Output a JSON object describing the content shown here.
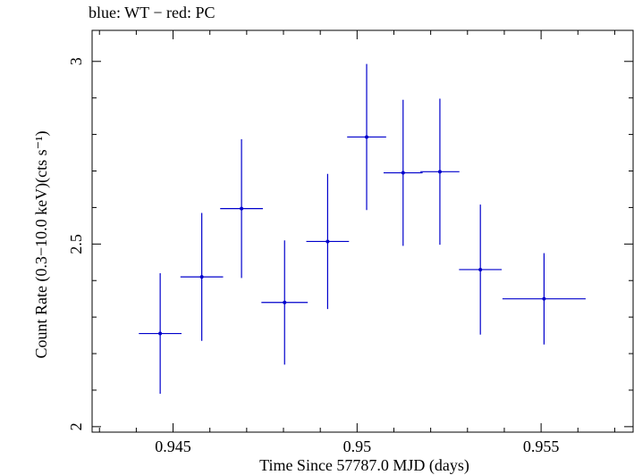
{
  "chart_data": {
    "type": "scatter",
    "title": "blue: WT − red: PC",
    "xlabel": "Time Since 57787.0 MJD (days)",
    "ylabel": "Count Rate (0.3−10.0 keV)(cts s⁻¹)",
    "xlim": [
      0.9428,
      0.9575
    ],
    "ylim": [
      1.985,
      3.085
    ],
    "xticks": [
      0.945,
      0.95,
      0.955
    ],
    "xtick_labels": [
      "0.945",
      "0.95",
      "0.955"
    ],
    "yticks": [
      2,
      2.5,
      3
    ],
    "ytick_labels": [
      "2",
      "2.5",
      "3"
    ],
    "grid": false,
    "series": [
      {
        "color": "#0000cc",
        "points": [
          {
            "x": 0.94465,
            "y": 2.255,
            "xerr": 0.00058,
            "yerr": 0.165
          },
          {
            "x": 0.94578,
            "y": 2.41,
            "xerr": 0.00058,
            "yerr": 0.175
          },
          {
            "x": 0.94686,
            "y": 2.597,
            "xerr": 0.00058,
            "yerr": 0.19
          },
          {
            "x": 0.94803,
            "y": 2.34,
            "xerr": 0.00063,
            "yerr": 0.17
          },
          {
            "x": 0.9492,
            "y": 2.507,
            "xerr": 0.00058,
            "yerr": 0.185
          },
          {
            "x": 0.95026,
            "y": 2.793,
            "xerr": 0.00053,
            "yerr": 0.2
          },
          {
            "x": 0.95125,
            "y": 2.695,
            "xerr": 0.00053,
            "yerr": 0.2
          },
          {
            "x": 0.95225,
            "y": 2.698,
            "xerr": 0.00053,
            "yerr": 0.2
          },
          {
            "x": 0.95335,
            "y": 2.43,
            "xerr": 0.00058,
            "yerr": 0.178
          },
          {
            "x": 0.95508,
            "y": 2.35,
            "xerr": 0.00113,
            "yerr": 0.125
          }
        ]
      }
    ]
  }
}
